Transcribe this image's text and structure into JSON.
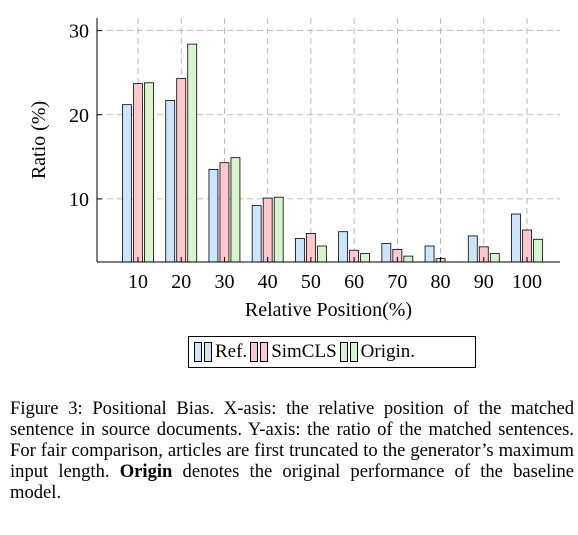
{
  "chart_data": {
    "type": "bar",
    "categories": [
      "10",
      "20",
      "30",
      "40",
      "50",
      "60",
      "70",
      "80",
      "90",
      "100"
    ],
    "series": [
      {
        "name": "Ref.",
        "values": [
          21.2,
          21.7,
          13.5,
          9.2,
          5.3,
          6.1,
          4.7,
          4.4,
          5.6,
          8.2
        ],
        "color": "#cce5ff"
      },
      {
        "name": "SimCLS",
        "values": [
          23.7,
          24.3,
          14.3,
          10.1,
          5.9,
          3.9,
          4.0,
          2.9,
          4.3,
          6.3
        ],
        "color": "#ffc7cc"
      },
      {
        "name": "Origin.",
        "values": [
          23.8,
          28.4,
          14.9,
          10.2,
          4.4,
          3.5,
          3.2,
          2.0,
          3.5,
          5.2
        ],
        "color": "#d6f5cc"
      }
    ],
    "xlabel": "Relative Position(%)",
    "ylabel": "Ratio (%)",
    "yticks": [
      10,
      20,
      30
    ],
    "ylim": [
      2.5,
      31.5
    ],
    "grid": true,
    "legend": "bottom",
    "title": ""
  },
  "caption": {
    "label": "Figure 3: ",
    "text_before": "Positional Bias. X-asis: the relative position of the matched sentence in source documents. Y-axis: the ratio of the matched sentences. For fair comparison, articles are first truncated to the generator’s maximum input length. ",
    "bold_word": "Origin",
    "text_after": " denotes the original performance of the baseline model."
  }
}
